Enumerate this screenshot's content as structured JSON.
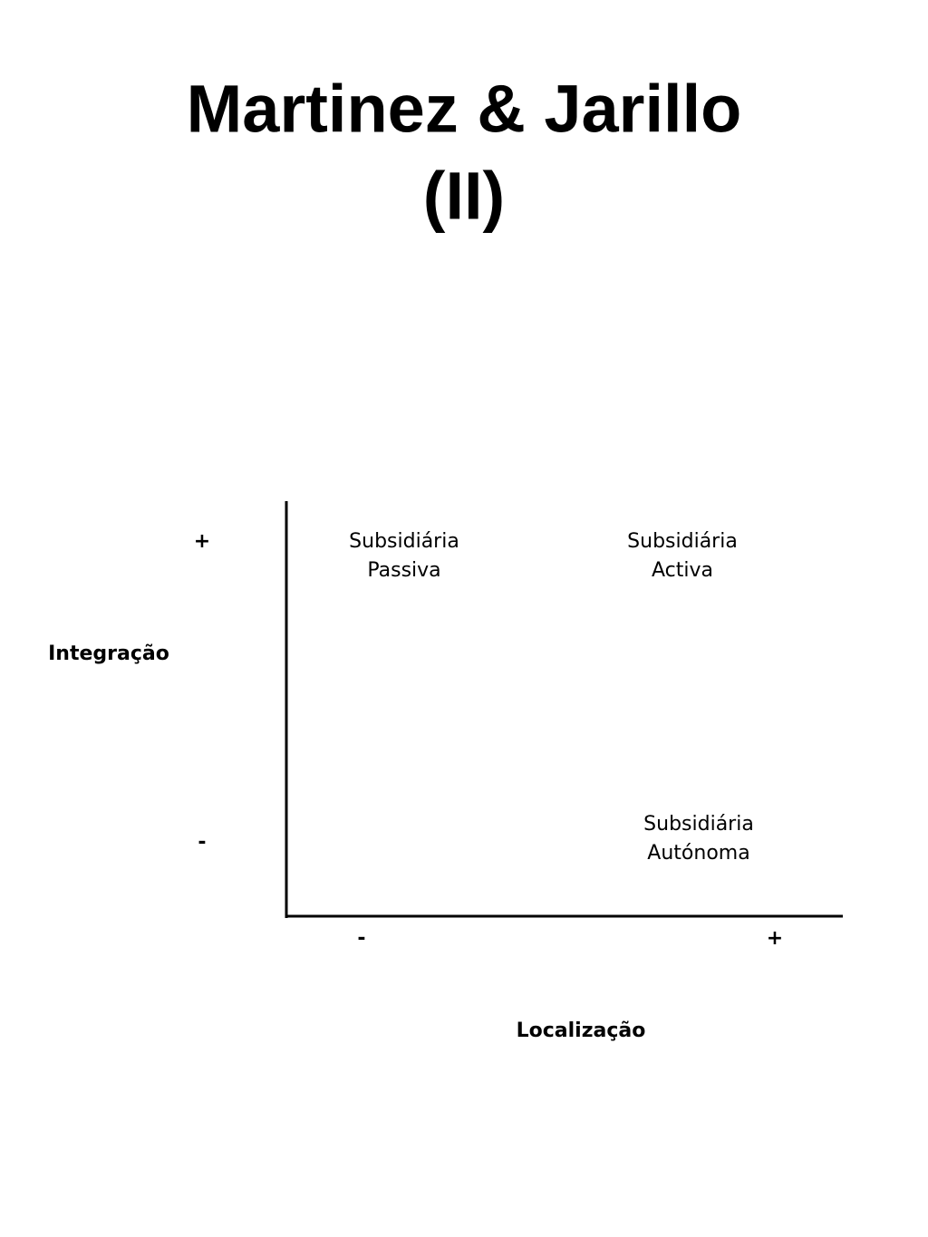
{
  "title": {
    "lines": [
      "Martinez & Jarillo",
      "(II)"
    ]
  },
  "y_axis": {
    "label": "Integração",
    "high": "+",
    "low": "-"
  },
  "x_axis": {
    "label": "Localização",
    "low": "-",
    "high": "+"
  },
  "quadrants": [
    {
      "lines": [
        "Subsidiária",
        "Passiva"
      ]
    },
    {
      "lines": [
        "Subsidiária",
        "Activa"
      ]
    },
    {
      "lines": [
        "Subsidiária",
        "Autónoma"
      ]
    }
  ]
}
